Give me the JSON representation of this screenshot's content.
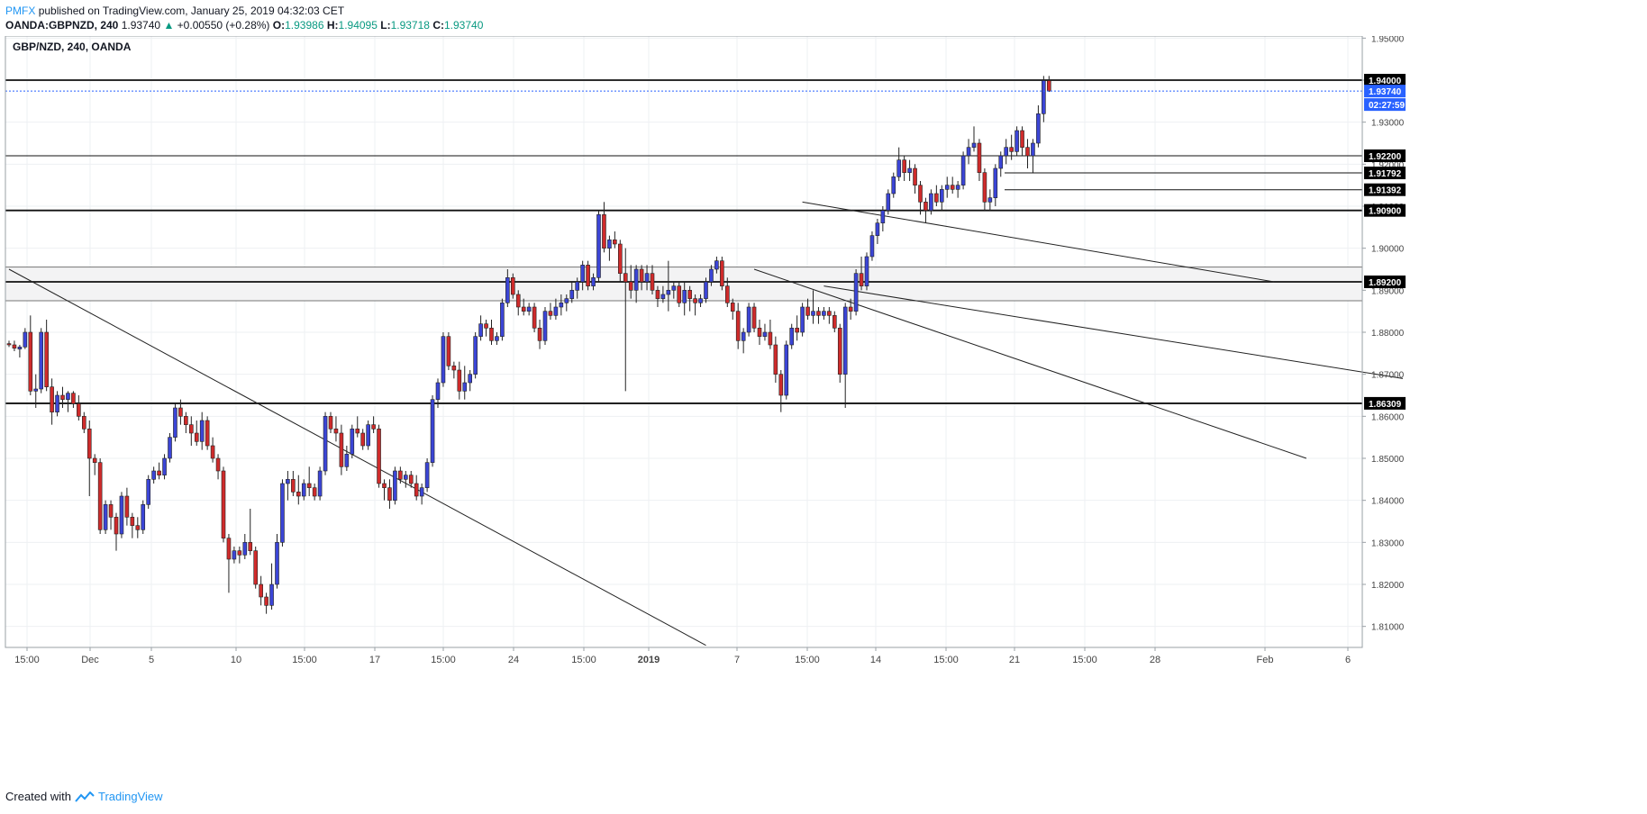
{
  "header": {
    "publisher": "PMFX",
    "published_text": "published on TradingView.com, January 25, 2019 04:32:03 CET",
    "symbol": "OANDA:GBPNZD, 240",
    "last": "1.93740",
    "change": "+0.00550 (+0.28%)",
    "open_label": "O:",
    "open": "1.93986",
    "high_label": "H:",
    "high": "1.94095",
    "low_label": "L:",
    "low": "1.93718",
    "close_label": "C:",
    "close": "1.93740"
  },
  "pane_label": "GBP/NZD, 240, OANDA",
  "footer": {
    "created_with": "Created with",
    "tradingview": "TradingView"
  },
  "colors": {
    "up": "#3b45d6",
    "down": "#cf2b2b",
    "grid": "#eef0f3",
    "tag": "#000000",
    "current_tag": "#2962ff"
  },
  "chart_data": {
    "type": "candlestick",
    "title": "GBP/NZD, 240, OANDA",
    "ylim": [
      1.805,
      1.9505
    ],
    "y_ticks": [
      "1.95000",
      "1.94000",
      "1.93000",
      "1.92000",
      "1.91000",
      "1.90000",
      "1.89000",
      "1.88000",
      "1.87000",
      "1.86000",
      "1.85000",
      "1.84000",
      "1.83000",
      "1.82000",
      "1.81000"
    ],
    "x_ticks": [
      "15:00",
      "Dec",
      "5",
      "10",
      "15:00",
      "17",
      "15:00",
      "24",
      "15:00",
      "2019",
      "7",
      "15:00",
      "14",
      "15:00",
      "21",
      "15:00",
      "28",
      "Feb",
      "6"
    ],
    "horizontal_levels": [
      {
        "price": 1.94,
        "label": "1.94000"
      },
      {
        "price": 1.922,
        "label": "1.92200"
      },
      {
        "price": 1.91792,
        "label": "1.91792"
      },
      {
        "price": 1.91392,
        "label": "1.91392"
      },
      {
        "price": 1.909,
        "label": "1.90900"
      },
      {
        "price": 1.892,
        "label": "1.89200"
      },
      {
        "price": 1.86309,
        "label": "1.86309"
      }
    ],
    "current_price": {
      "price": 1.9374,
      "label": "1.93740",
      "countdown": "02:27:59"
    },
    "candles": [
      [
        1.8773,
        1.878,
        1.8765,
        1.877
      ],
      [
        1.877,
        1.878,
        1.8755,
        1.8762
      ],
      [
        1.876,
        1.877,
        1.874,
        1.8765
      ],
      [
        1.8765,
        1.881,
        1.876,
        1.88
      ],
      [
        1.88,
        1.884,
        1.865,
        1.866
      ],
      [
        1.866,
        1.87,
        1.862,
        1.8665
      ],
      [
        1.8665,
        1.881,
        1.8655,
        1.88
      ],
      [
        1.88,
        1.883,
        1.866,
        1.867
      ],
      [
        1.867,
        1.869,
        1.858,
        1.861
      ],
      [
        1.861,
        1.866,
        1.86,
        1.865
      ],
      [
        1.865,
        1.867,
        1.862,
        1.864
      ],
      [
        1.864,
        1.866,
        1.861,
        1.8655
      ],
      [
        1.8655,
        1.866,
        1.862,
        1.863
      ],
      [
        1.863,
        1.865,
        1.859,
        1.86
      ],
      [
        1.86,
        1.861,
        1.856,
        1.857
      ],
      [
        1.857,
        1.859,
        1.841,
        1.85
      ],
      [
        1.85,
        1.851,
        1.846,
        1.849
      ],
      [
        1.849,
        1.85,
        1.832,
        1.833
      ],
      [
        1.833,
        1.84,
        1.832,
        1.839
      ],
      [
        1.839,
        1.84,
        1.833,
        1.836
      ],
      [
        1.836,
        1.837,
        1.828,
        1.832
      ],
      [
        1.832,
        1.842,
        1.831,
        1.841
      ],
      [
        1.841,
        1.843,
        1.834,
        1.836
      ],
      [
        1.836,
        1.837,
        1.831,
        1.834
      ],
      [
        1.834,
        1.836,
        1.831,
        1.833
      ],
      [
        1.833,
        1.84,
        1.832,
        1.839
      ],
      [
        1.839,
        1.846,
        1.838,
        1.845
      ],
      [
        1.845,
        1.848,
        1.844,
        1.847
      ],
      [
        1.847,
        1.849,
        1.845,
        1.846
      ],
      [
        1.846,
        1.851,
        1.845,
        1.85
      ],
      [
        1.85,
        1.856,
        1.849,
        1.855
      ],
      [
        1.855,
        1.863,
        1.854,
        1.862
      ],
      [
        1.862,
        1.864,
        1.858,
        1.86
      ],
      [
        1.86,
        1.861,
        1.856,
        1.858
      ],
      [
        1.858,
        1.86,
        1.853,
        1.856
      ],
      [
        1.856,
        1.859,
        1.853,
        1.854
      ],
      [
        1.854,
        1.861,
        1.852,
        1.859
      ],
      [
        1.859,
        1.86,
        1.852,
        1.853
      ],
      [
        1.853,
        1.855,
        1.849,
        1.85
      ],
      [
        1.85,
        1.851,
        1.845,
        1.847
      ],
      [
        1.847,
        1.848,
        1.83,
        1.831
      ],
      [
        1.831,
        1.832,
        1.818,
        1.826
      ],
      [
        1.826,
        1.829,
        1.825,
        1.828
      ],
      [
        1.828,
        1.829,
        1.825,
        1.827
      ],
      [
        1.827,
        1.832,
        1.826,
        1.83
      ],
      [
        1.83,
        1.838,
        1.827,
        1.828
      ],
      [
        1.828,
        1.829,
        1.819,
        1.82
      ],
      [
        1.82,
        1.822,
        1.815,
        1.817
      ],
      [
        1.817,
        1.818,
        1.813,
        1.815
      ],
      [
        1.815,
        1.825,
        1.814,
        1.82
      ],
      [
        1.82,
        1.832,
        1.819,
        1.83
      ],
      [
        1.83,
        1.845,
        1.829,
        1.844
      ],
      [
        1.844,
        1.847,
        1.84,
        1.845
      ],
      [
        1.845,
        1.847,
        1.841,
        1.842
      ],
      [
        1.842,
        1.846,
        1.839,
        1.841
      ],
      [
        1.841,
        1.845,
        1.84,
        1.844
      ],
      [
        1.844,
        1.848,
        1.841,
        1.843
      ],
      [
        1.843,
        1.844,
        1.84,
        1.841
      ],
      [
        1.841,
        1.848,
        1.84,
        1.847
      ],
      [
        1.847,
        1.861,
        1.846,
        1.86
      ],
      [
        1.86,
        1.861,
        1.856,
        1.857
      ],
      [
        1.857,
        1.86,
        1.854,
        1.856
      ],
      [
        1.856,
        1.858,
        1.846,
        1.848
      ],
      [
        1.848,
        1.853,
        1.847,
        1.851
      ],
      [
        1.851,
        1.858,
        1.85,
        1.857
      ],
      [
        1.857,
        1.86,
        1.855,
        1.856
      ],
      [
        1.856,
        1.857,
        1.852,
        1.853
      ],
      [
        1.853,
        1.859,
        1.852,
        1.858
      ],
      [
        1.858,
        1.86,
        1.856,
        1.857
      ],
      [
        1.857,
        1.858,
        1.843,
        1.844
      ],
      [
        1.844,
        1.845,
        1.84,
        1.843
      ],
      [
        1.843,
        1.845,
        1.838,
        1.84
      ],
      [
        1.84,
        1.848,
        1.839,
        1.847
      ],
      [
        1.847,
        1.848,
        1.844,
        1.845
      ],
      [
        1.845,
        1.847,
        1.843,
        1.846
      ],
      [
        1.846,
        1.847,
        1.843,
        1.844
      ],
      [
        1.844,
        1.846,
        1.84,
        1.841
      ],
      [
        1.841,
        1.844,
        1.839,
        1.843
      ],
      [
        1.843,
        1.85,
        1.842,
        1.849
      ],
      [
        1.849,
        1.865,
        1.848,
        1.864
      ],
      [
        1.864,
        1.869,
        1.862,
        1.868
      ],
      [
        1.868,
        1.88,
        1.867,
        1.879
      ],
      [
        1.879,
        1.88,
        1.871,
        1.872
      ],
      [
        1.872,
        1.873,
        1.869,
        1.871
      ],
      [
        1.871,
        1.873,
        1.864,
        1.866
      ],
      [
        1.866,
        1.872,
        1.864,
        1.868
      ],
      [
        1.868,
        1.871,
        1.866,
        1.87
      ],
      [
        1.87,
        1.88,
        1.869,
        1.879
      ],
      [
        1.879,
        1.884,
        1.878,
        1.882
      ],
      [
        1.882,
        1.883,
        1.879,
        1.881
      ],
      [
        1.881,
        1.883,
        1.877,
        1.878
      ],
      [
        1.878,
        1.88,
        1.877,
        1.879
      ],
      [
        1.879,
        1.888,
        1.878,
        1.887
      ],
      [
        1.887,
        1.895,
        1.886,
        1.893
      ],
      [
        1.893,
        1.894,
        1.888,
        1.889
      ],
      [
        1.889,
        1.89,
        1.884,
        1.886
      ],
      [
        1.886,
        1.888,
        1.884,
        1.885
      ],
      [
        1.885,
        1.887,
        1.884,
        1.886
      ],
      [
        1.886,
        1.887,
        1.88,
        1.881
      ],
      [
        1.881,
        1.883,
        1.876,
        1.878
      ],
      [
        1.878,
        1.886,
        1.877,
        1.885
      ],
      [
        1.885,
        1.887,
        1.883,
        1.884
      ],
      [
        1.884,
        1.888,
        1.883,
        1.886
      ],
      [
        1.886,
        1.889,
        1.884,
        1.887
      ],
      [
        1.887,
        1.889,
        1.885,
        1.888
      ],
      [
        1.888,
        1.892,
        1.887,
        1.89
      ],
      [
        1.89,
        1.893,
        1.888,
        1.892
      ],
      [
        1.892,
        1.897,
        1.89,
        1.896
      ],
      [
        1.896,
        1.897,
        1.89,
        1.891
      ],
      [
        1.891,
        1.894,
        1.89,
        1.893
      ],
      [
        1.893,
        1.909,
        1.892,
        1.908
      ],
      [
        1.908,
        1.911,
        1.899,
        1.9
      ],
      [
        1.9,
        1.903,
        1.897,
        1.902
      ],
      [
        1.902,
        1.904,
        1.9,
        1.901
      ],
      [
        1.901,
        1.902,
        1.892,
        1.894
      ],
      [
        1.894,
        1.9,
        1.866,
        1.892
      ],
      [
        1.892,
        1.896,
        1.888,
        1.89
      ],
      [
        1.89,
        1.896,
        1.887,
        1.895
      ],
      [
        1.895,
        1.896,
        1.89,
        1.892
      ],
      [
        1.892,
        1.896,
        1.89,
        1.894
      ],
      [
        1.894,
        1.896,
        1.889,
        1.89
      ],
      [
        1.89,
        1.891,
        1.886,
        1.888
      ],
      [
        1.888,
        1.891,
        1.887,
        1.889
      ],
      [
        1.889,
        1.897,
        1.885,
        1.89
      ],
      [
        1.89,
        1.892,
        1.888,
        1.891
      ],
      [
        1.891,
        1.892,
        1.886,
        1.887
      ],
      [
        1.887,
        1.892,
        1.884,
        1.89
      ],
      [
        1.89,
        1.891,
        1.885,
        1.888
      ],
      [
        1.888,
        1.889,
        1.884,
        1.887
      ],
      [
        1.887,
        1.889,
        1.886,
        1.888
      ],
      [
        1.888,
        1.893,
        1.887,
        1.892
      ],
      [
        1.892,
        1.896,
        1.891,
        1.895
      ],
      [
        1.895,
        1.898,
        1.894,
        1.897
      ],
      [
        1.897,
        1.898,
        1.89,
        1.891
      ],
      [
        1.891,
        1.893,
        1.886,
        1.887
      ],
      [
        1.887,
        1.888,
        1.883,
        1.885
      ],
      [
        1.885,
        1.887,
        1.876,
        1.878
      ],
      [
        1.878,
        1.881,
        1.875,
        1.88
      ],
      [
        1.88,
        1.887,
        1.879,
        1.886
      ],
      [
        1.886,
        1.887,
        1.88,
        1.881
      ],
      [
        1.881,
        1.883,
        1.877,
        1.879
      ],
      [
        1.879,
        1.882,
        1.878,
        1.88
      ],
      [
        1.88,
        1.883,
        1.876,
        1.877
      ],
      [
        1.877,
        1.879,
        1.868,
        1.87
      ],
      [
        1.87,
        1.871,
        1.861,
        1.865
      ],
      [
        1.865,
        1.878,
        1.864,
        1.877
      ],
      [
        1.877,
        1.882,
        1.876,
        1.881
      ],
      [
        1.881,
        1.884,
        1.878,
        1.88
      ],
      [
        1.88,
        1.887,
        1.879,
        1.886
      ],
      [
        1.886,
        1.888,
        1.883,
        1.884
      ],
      [
        1.884,
        1.89,
        1.882,
        1.885
      ],
      [
        1.885,
        1.886,
        1.882,
        1.884
      ],
      [
        1.884,
        1.886,
        1.883,
        1.885
      ],
      [
        1.885,
        1.886,
        1.882,
        1.884
      ],
      [
        1.884,
        1.885,
        1.88,
        1.881
      ],
      [
        1.881,
        1.882,
        1.868,
        1.87
      ],
      [
        1.87,
        1.887,
        1.862,
        1.886
      ],
      [
        1.886,
        1.888,
        1.883,
        1.885
      ],
      [
        1.885,
        1.895,
        1.884,
        1.894
      ],
      [
        1.894,
        1.898,
        1.89,
        1.891
      ],
      [
        1.891,
        1.899,
        1.89,
        1.898
      ],
      [
        1.898,
        1.904,
        1.897,
        1.903
      ],
      [
        1.903,
        1.907,
        1.901,
        1.906
      ],
      [
        1.906,
        1.91,
        1.904,
        1.909
      ],
      [
        1.909,
        1.914,
        1.908,
        1.913
      ],
      [
        1.913,
        1.918,
        1.912,
        1.917
      ],
      [
        1.917,
        1.924,
        1.916,
        1.921
      ],
      [
        1.921,
        1.922,
        1.916,
        1.918
      ],
      [
        1.918,
        1.921,
        1.916,
        1.919
      ],
      [
        1.919,
        1.92,
        1.913,
        1.915
      ],
      [
        1.915,
        1.916,
        1.908,
        1.911
      ],
      [
        1.911,
        1.912,
        1.906,
        1.909
      ],
      [
        1.909,
        1.914,
        1.908,
        1.913
      ],
      [
        1.913,
        1.915,
        1.91,
        1.911
      ],
      [
        1.911,
        1.915,
        1.909,
        1.914
      ],
      [
        1.914,
        1.917,
        1.912,
        1.915
      ],
      [
        1.915,
        1.917,
        1.913,
        1.914
      ],
      [
        1.914,
        1.916,
        1.912,
        1.915
      ],
      [
        1.915,
        1.923,
        1.914,
        1.922
      ],
      [
        1.922,
        1.926,
        1.92,
        1.924
      ],
      [
        1.924,
        1.929,
        1.923,
        1.925
      ],
      [
        1.925,
        1.926,
        1.916,
        1.918
      ],
      [
        1.918,
        1.919,
        1.909,
        1.911
      ],
      [
        1.911,
        1.914,
        1.909,
        1.912
      ],
      [
        1.912,
        1.92,
        1.91,
        1.919
      ],
      [
        1.919,
        1.923,
        1.917,
        1.922
      ],
      [
        1.922,
        1.926,
        1.92,
        1.924
      ],
      [
        1.924,
        1.927,
        1.921,
        1.923
      ],
      [
        1.923,
        1.929,
        1.922,
        1.928
      ],
      [
        1.928,
        1.929,
        1.922,
        1.924
      ],
      [
        1.924,
        1.926,
        1.919,
        1.922
      ],
      [
        1.922,
        1.926,
        1.918,
        1.925
      ],
      [
        1.925,
        1.934,
        1.924,
        1.932
      ],
      [
        1.932,
        1.941,
        1.93,
        1.9399
      ],
      [
        1.9399,
        1.941,
        1.9372,
        1.9374
      ]
    ],
    "trendlines": [
      [
        [
          0,
          1.895
        ],
        [
          130,
          1.8055
        ]
      ],
      [
        [
          152,
          1.891
        ],
        [
          260,
          1.869
        ]
      ],
      [
        [
          148,
          1.911
        ],
        [
          236,
          1.892
        ]
      ],
      [
        [
          139,
          1.895
        ],
        [
          242,
          1.85
        ]
      ]
    ],
    "zone": [
      1.8875,
      1.8955
    ]
  }
}
